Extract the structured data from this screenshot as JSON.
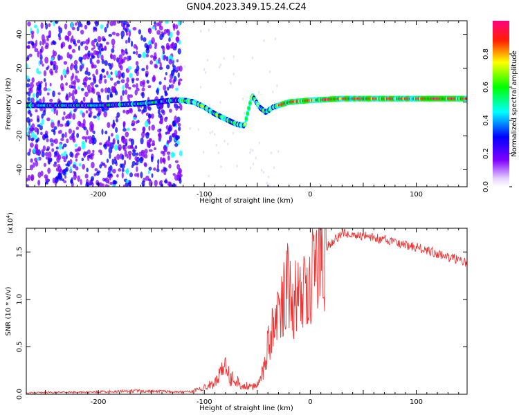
{
  "title": "GN04.2023.349.15.24.C24",
  "chart_data": [
    {
      "type": "heatmap",
      "xlabel": "Height of straight line (km)",
      "ylabel": "Frequency (Hz)",
      "xlim": [
        -268,
        148
      ],
      "ylim": [
        -50,
        48
      ],
      "xticks": [
        -200,
        -100,
        0,
        100
      ],
      "yticks": [
        -40,
        -20,
        0,
        20,
        40
      ],
      "colorbar": {
        "label": "Normalized spectral amplitude",
        "range": [
          0,
          1
        ],
        "ticks": [
          "0.0",
          "0.2",
          "0.4",
          "0.6",
          "0.8"
        ],
        "tick_values": [
          0,
          0.2,
          0.4,
          0.6,
          0.8
        ],
        "colormap": "white-purple-blue-cyan-green-yellow-red-magenta"
      },
      "signal_track": [
        {
          "x": -268,
          "f": -2
        },
        {
          "x": -200,
          "f": -2
        },
        {
          "x": -160,
          "f": -1
        },
        {
          "x": -130,
          "f": 1
        },
        {
          "x": -120,
          "f": 1
        },
        {
          "x": -110,
          "f": 0
        },
        {
          "x": -100,
          "f": -3
        },
        {
          "x": -90,
          "f": -7
        },
        {
          "x": -80,
          "f": -10
        },
        {
          "x": -70,
          "f": -13
        },
        {
          "x": -62,
          "f": -14
        },
        {
          "x": -55,
          "f": 4
        },
        {
          "x": -48,
          "f": -3
        },
        {
          "x": -42,
          "f": -6
        },
        {
          "x": -35,
          "f": -3
        },
        {
          "x": -30,
          "f": -2
        },
        {
          "x": -20,
          "f": 0
        },
        {
          "x": 0,
          "f": 1
        },
        {
          "x": 30,
          "f": 2
        },
        {
          "x": 80,
          "f": 2
        },
        {
          "x": 148,
          "f": 2
        }
      ]
    },
    {
      "type": "line",
      "xlabel": "Height of straight line (km)",
      "ylabel": "SNR (10 * v/v)",
      "y_multiplier": "(x10",
      "y_multiplier_exp": "4",
      "y_multiplier_close": ")",
      "xlim": [
        -268,
        148
      ],
      "ylim": [
        0,
        17500
      ],
      "xticks": [
        -200,
        -100,
        0,
        100
      ],
      "yticks": [
        0,
        5000,
        10000,
        15000
      ],
      "ytick_labels": [
        "0.0",
        "0.5",
        "1.0",
        "1.5"
      ],
      "color": "#ee3333",
      "series": [
        {
          "x": [
            -268,
            -240,
            -200,
            -180,
            -160,
            -140,
            -120,
            -110,
            -100,
            -90,
            -85,
            -80,
            -75,
            -70,
            -65,
            -60,
            -55,
            -50,
            -45,
            -40,
            -35,
            -30,
            -25,
            -20,
            -15,
            -10,
            -5,
            0,
            5,
            10,
            15,
            20,
            25,
            30,
            40,
            50,
            60,
            70,
            80,
            90,
            100,
            110,
            120,
            130,
            140,
            148
          ],
          "y": [
            150,
            200,
            250,
            300,
            350,
            300,
            250,
            400,
            700,
            1200,
            2500,
            2800,
            1500,
            1800,
            800,
            900,
            700,
            1000,
            2500,
            5000,
            7000,
            8000,
            10500,
            12000,
            9500,
            11000,
            12500,
            12000,
            13500,
            14500,
            15500,
            16000,
            16500,
            17000,
            16800,
            16700,
            16500,
            16300,
            16000,
            15700,
            15500,
            15200,
            14800,
            14500,
            14200,
            13800
          ]
        }
      ]
    }
  ]
}
